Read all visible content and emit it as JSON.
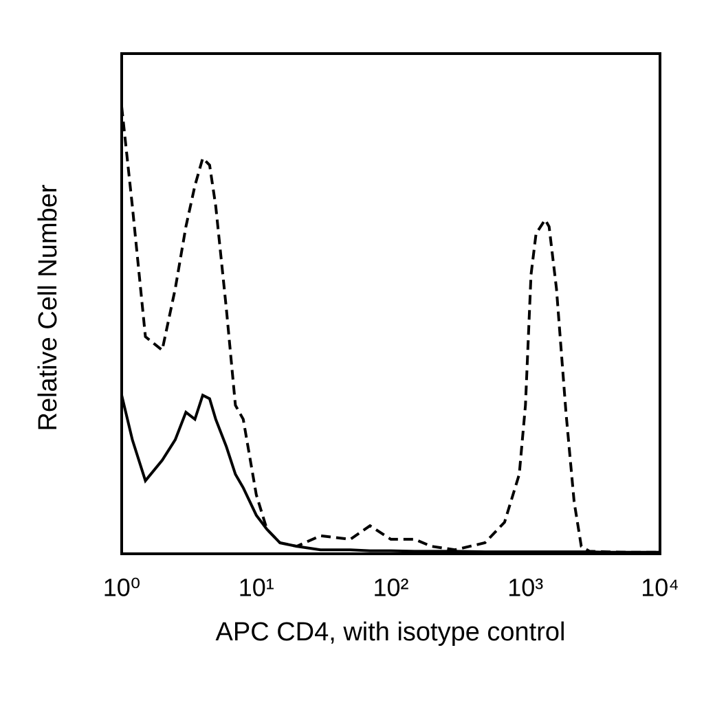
{
  "chart_data": {
    "type": "line",
    "x_label": "APC CD4, with isotype control",
    "y_label": "Relative Cell Number",
    "x": [
      1,
      1.2,
      1.5,
      2,
      2.5,
      3,
      3.5,
      4,
      4.5,
      5,
      6,
      7,
      8,
      10,
      12,
      15,
      20,
      30,
      50,
      70,
      100,
      150,
      200,
      300,
      500,
      700,
      900,
      1000,
      1100,
      1200,
      1400,
      1500,
      1700,
      2000,
      2300,
      2600,
      3000,
      4000,
      6000,
      10000
    ],
    "series": [
      {
        "color": "#000000",
        "line_style": "dashed",
        "values": [
          89.4,
          69.5,
          43.4,
          40.7,
          53,
          65.4,
          73.6,
          79.1,
          77.7,
          69.5,
          48.9,
          29.7,
          26.9,
          11.8,
          4.9,
          2.2,
          1.5,
          3.6,
          2.9,
          5.6,
          2.9,
          2.9,
          1.5,
          0.8,
          2.2,
          6.3,
          15.9,
          29.7,
          55.8,
          64,
          66.8,
          65.4,
          53,
          28.3,
          10.4,
          1.5,
          0.5,
          0.4,
          0.3,
          0.3
        ]
      },
      {
        "color": "#000000",
        "line_style": "solid",
        "values": [
          31.7,
          22.8,
          14.6,
          18.7,
          22.8,
          28.3,
          26.9,
          31.7,
          31,
          26.9,
          21.4,
          15.9,
          13.2,
          7.7,
          4.9,
          2.2,
          1.5,
          0.8,
          0.8,
          0.6,
          0.6,
          0.5,
          0.5,
          0.5,
          0.4,
          0.4,
          0.4,
          0.4,
          0.4,
          0.4,
          0.4,
          0.4,
          0.4,
          0.4,
          0.4,
          0.4,
          0.4,
          0.3,
          0.3,
          0.3
        ]
      }
    ],
    "log_x": true,
    "xlim": [
      1,
      10000
    ],
    "xticks": [
      {
        "value": 1,
        "label": "10⁰"
      },
      {
        "value": 10,
        "label": "10¹"
      },
      {
        "value": 100,
        "label": "10²"
      },
      {
        "value": 1000,
        "label": "10³"
      },
      {
        "value": 10000,
        "label": "10⁴"
      }
    ],
    "ylim": [
      0,
      100
    ]
  }
}
